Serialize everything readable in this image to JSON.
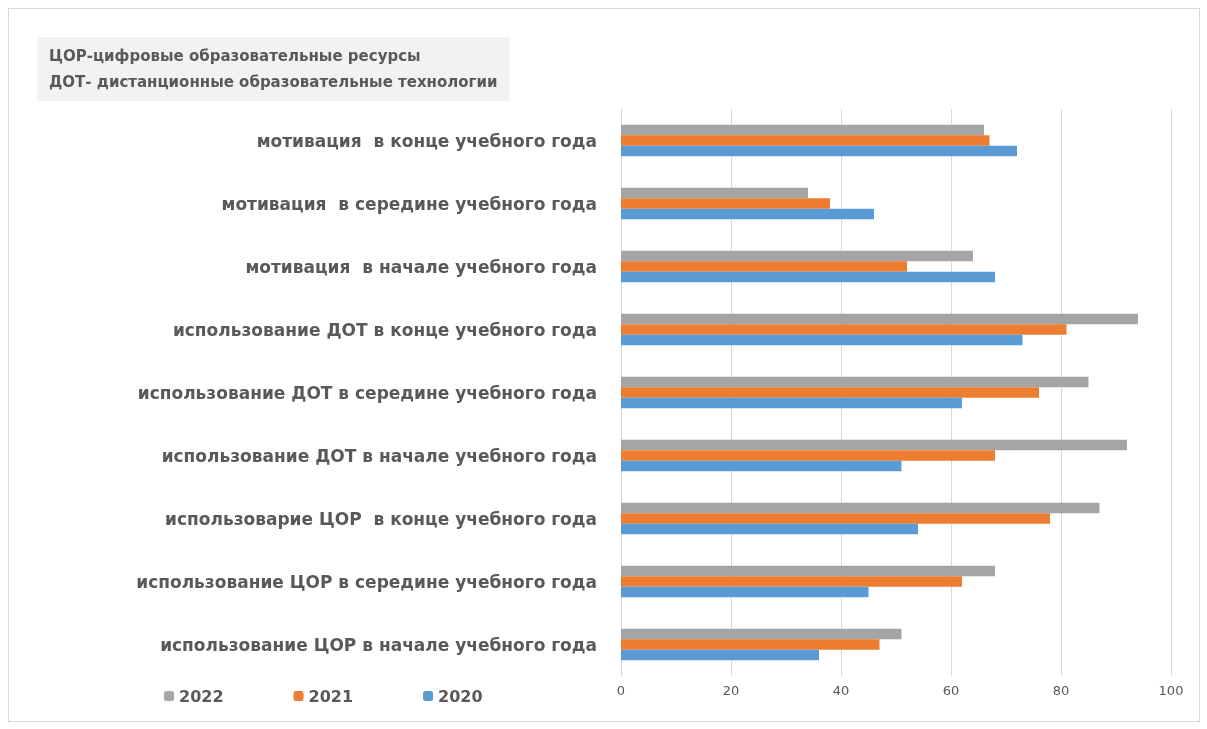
{
  "chart_data": {
    "type": "bar",
    "orientation": "horizontal",
    "annotations": [
      "ЦОР-цифровые образовательные ресурсы",
      "ДОТ- дистанционные образовательные технологии"
    ],
    "categories": [
      "мотивация  в конце учебного года",
      "мотивация  в середине учебного года",
      "мотивация  в начале учебного года",
      "использование ДОТ в конце учебного года",
      "использование ДОТ в середине учебного года",
      "использование ДОТ в начале учебного года",
      "использоварие ЦОР  в конце учебного года",
      "использование ЦОР в середине учебного года",
      "использование ЦОР в начале учебного года"
    ],
    "series": [
      {
        "name": "2022",
        "color": "#a5a5a5",
        "values": [
          66,
          34,
          64,
          94,
          85,
          92,
          87,
          68,
          51
        ]
      },
      {
        "name": "2021",
        "color": "#ed7d31",
        "values": [
          67,
          38,
          52,
          81,
          76,
          68,
          78,
          62,
          47
        ]
      },
      {
        "name": "2020",
        "color": "#5b9bd5",
        "values": [
          72,
          46,
          68,
          73,
          62,
          51,
          54,
          45,
          36
        ]
      }
    ],
    "xlim": [
      0,
      100
    ],
    "xticks": [
      0,
      20,
      40,
      60,
      80,
      100
    ],
    "grid": "x",
    "legend": "bottom left"
  }
}
